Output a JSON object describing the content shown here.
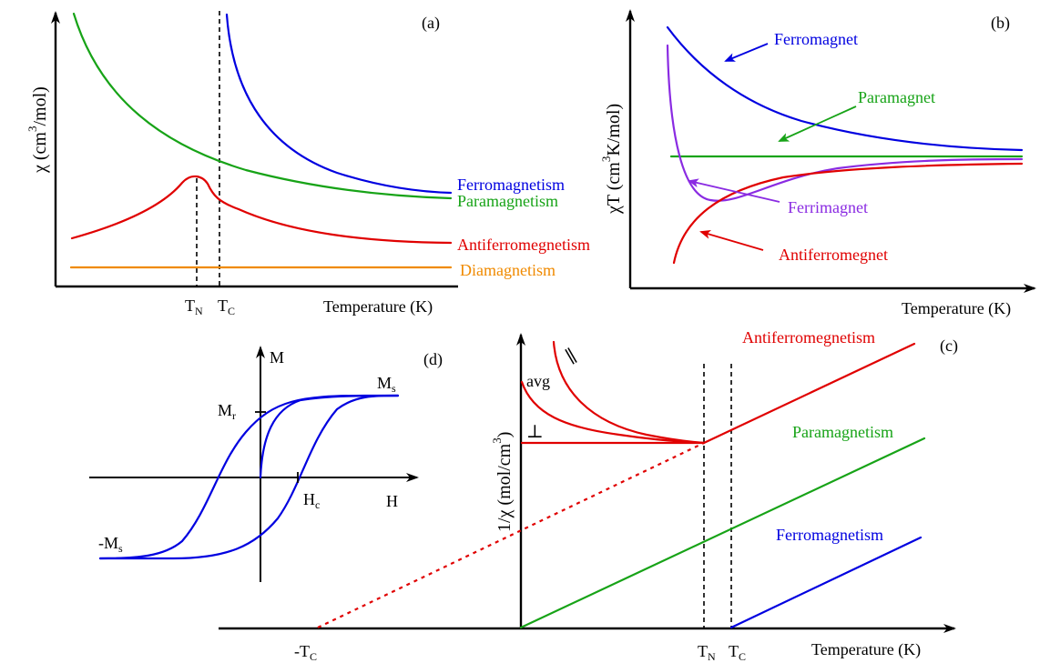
{
  "colors": {
    "ferro": "#0000e0",
    "para": "#17a317",
    "antiferro": "#e00000",
    "dia": "#f08a00",
    "ferri": "#8a2be2",
    "axis": "#000000"
  },
  "panel_a": {
    "tag": "(a)",
    "ylabel_main": "χ (cm",
    "ylabel_sup": "3",
    "ylabel_end": "/mol)",
    "xlabel": "Temperature (K)",
    "tick_tn": "T",
    "tick_tn_sub": "N",
    "tick_tc": "T",
    "tick_tc_sub": "C",
    "label_ferro": "Ferromagnetism",
    "label_para": "Paramagnetism",
    "label_antiferro": "Antiferromegnetism",
    "label_dia": "Diamagnetism"
  },
  "panel_b": {
    "tag": "(b)",
    "ylabel_main": "χT (cm",
    "ylabel_sup": "3",
    "ylabel_end": "K/mol)",
    "xlabel": "Temperature (K)",
    "label_ferro": "Ferromagnet",
    "label_para": "Paramagnet",
    "label_ferri": "Ferrimagnet",
    "label_antiferro": "Antiferromegnet"
  },
  "panel_c": {
    "tag": "(c)",
    "ylabel_main": "1/χ (mol/cm",
    "ylabel_sup": "3",
    "ylabel_end": ")",
    "xlabel": "Temperature (K)",
    "tick_neg_tc": "-T",
    "tick_neg_tc_sub": "C",
    "tick_tn": "T",
    "tick_tn_sub": "N",
    "tick_tc": "T",
    "tick_tc_sub": "C",
    "label_antiferro": "Antiferromegnetism",
    "label_para": "Paramagnetism",
    "label_ferro": "Ferromagnetism",
    "label_avg": "avg",
    "label_perp": "⊥",
    "label_par": "∥"
  },
  "panel_d": {
    "tag": "(d)",
    "label_m": "M",
    "label_h": "H",
    "label_ms": "M",
    "label_ms_sub": "s",
    "label_neg_ms": "-M",
    "label_neg_ms_sub": "s",
    "label_mr": "M",
    "label_mr_sub": "r",
    "label_hc": "H",
    "label_hc_sub": "c"
  }
}
